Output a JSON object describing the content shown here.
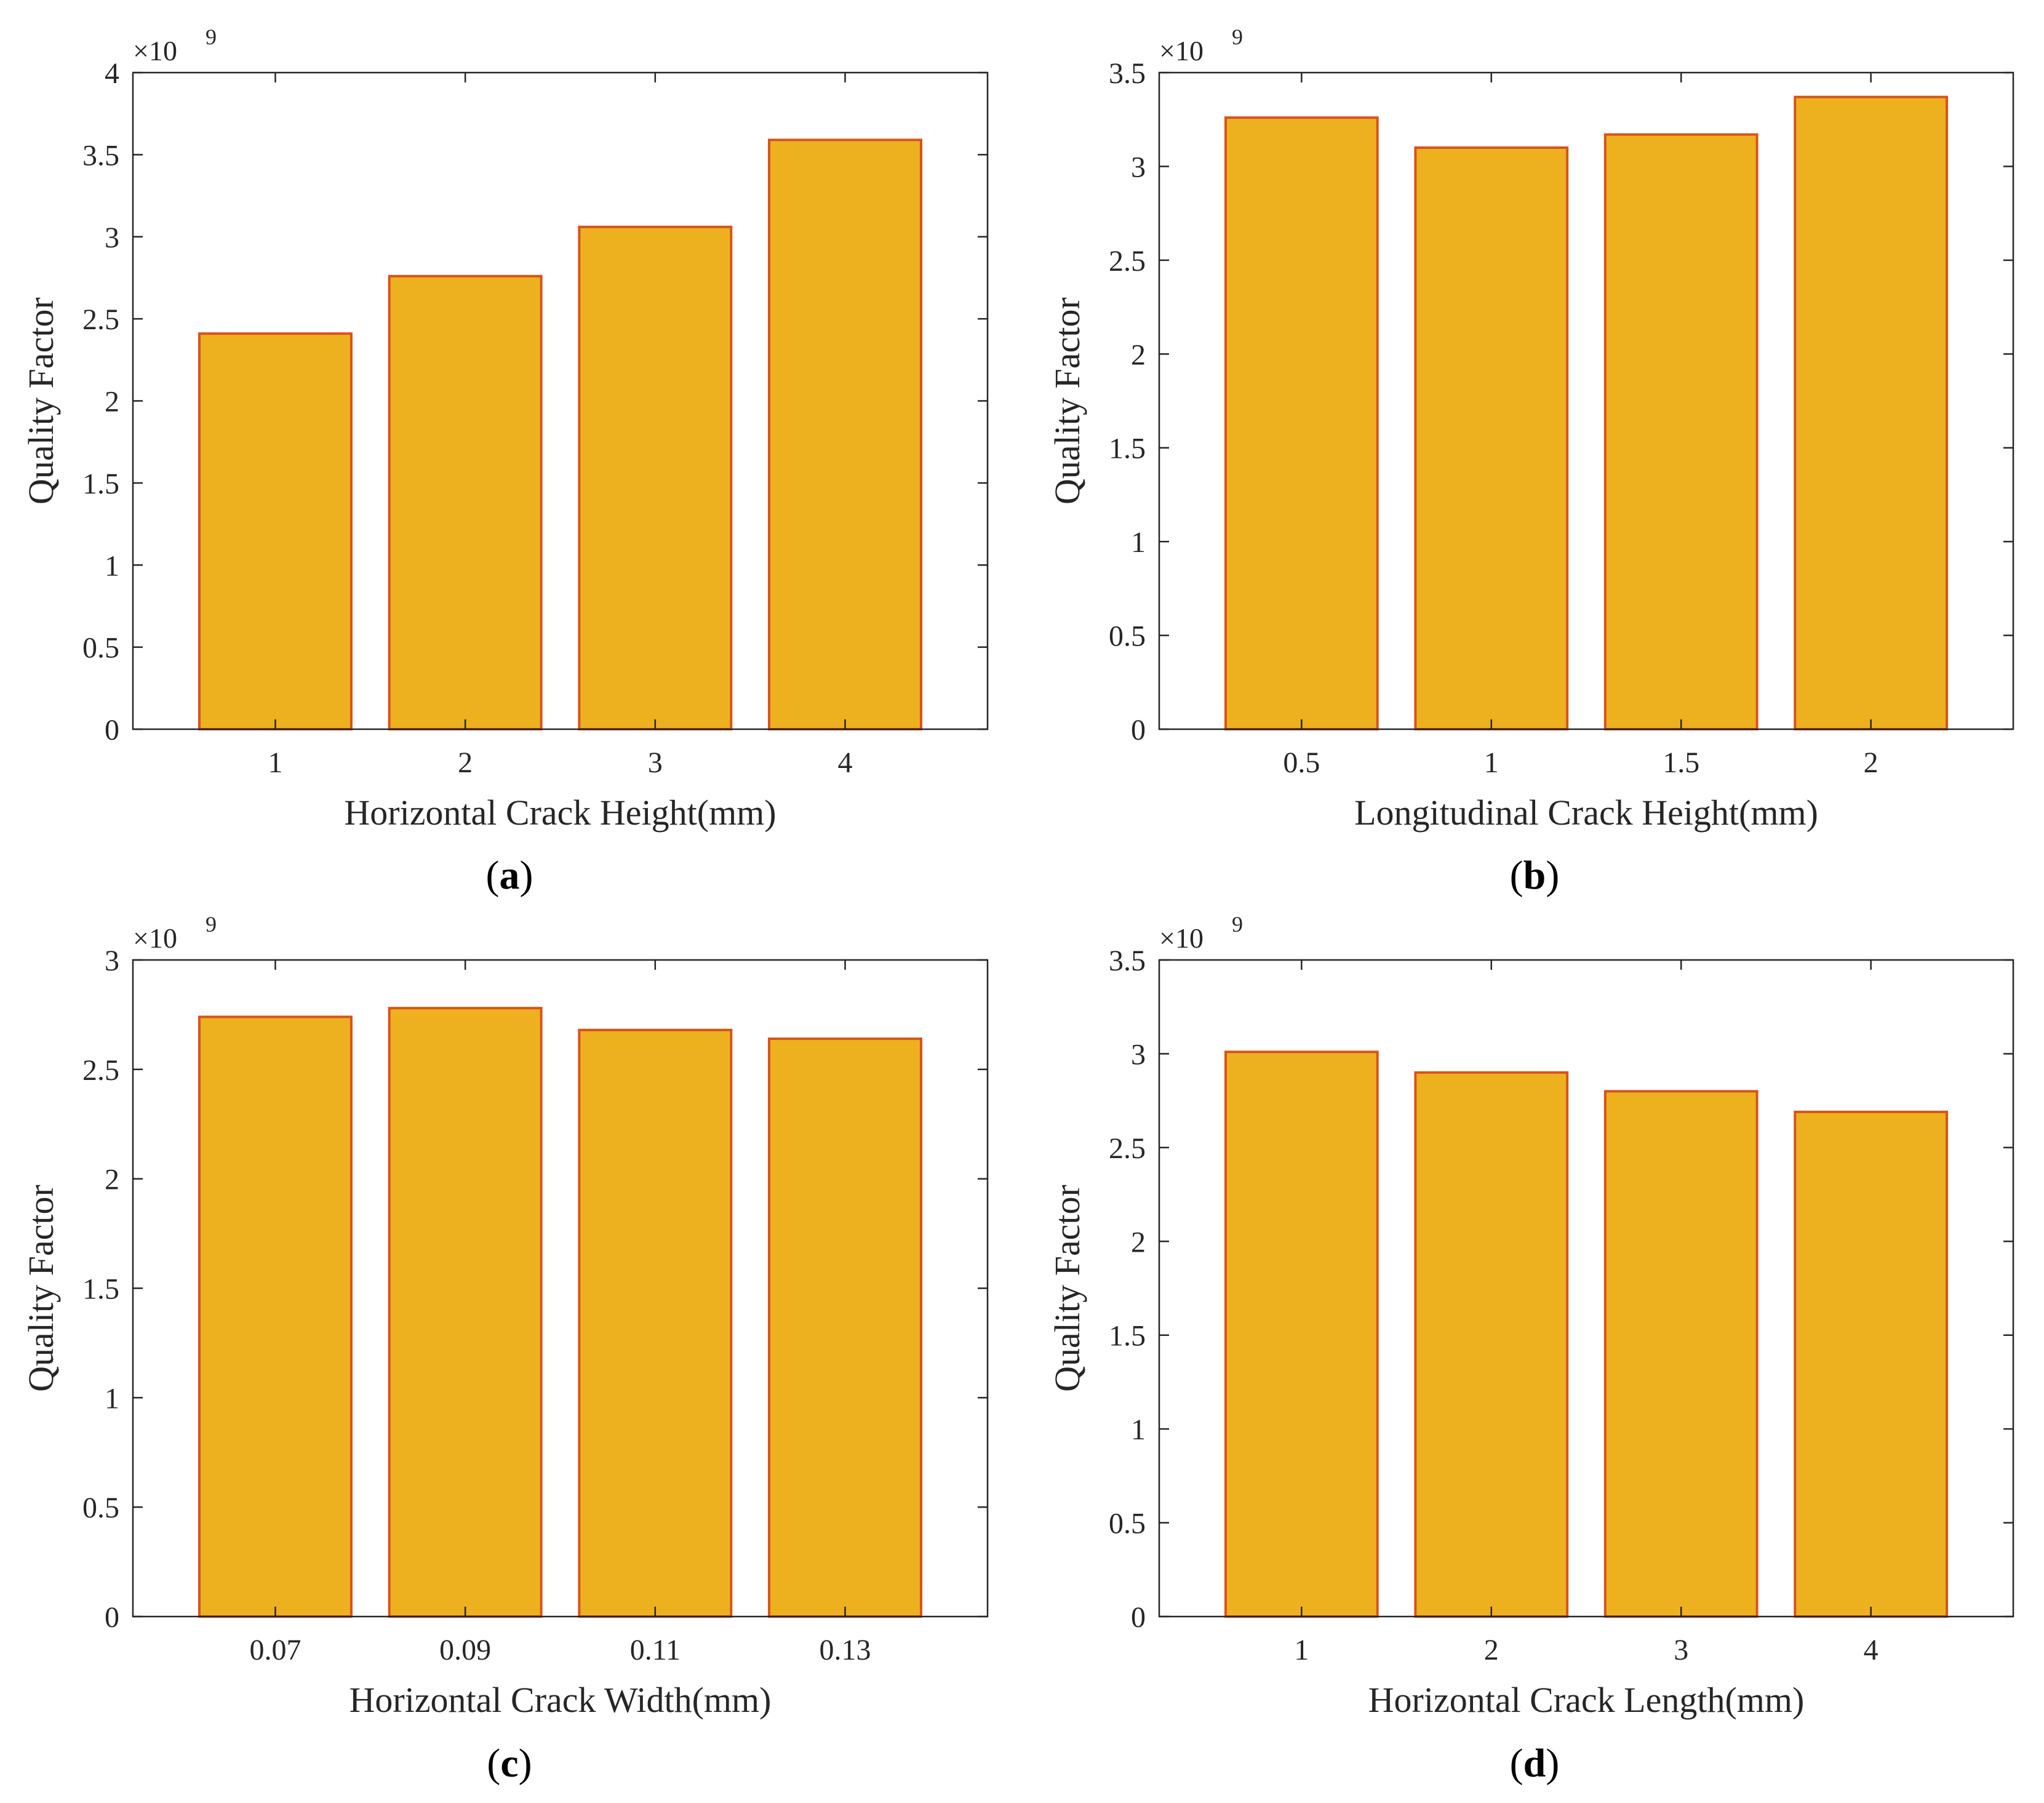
{
  "colors": {
    "bar_fill": "#EDB120",
    "bar_edge": "#D95319",
    "axis": "#262626"
  },
  "chart_data": [
    {
      "type": "bar",
      "panel": "(a)",
      "panel_letter": "a",
      "categories": [
        "1",
        "2",
        "3",
        "4"
      ],
      "values": [
        2.41,
        2.76,
        3.06,
        3.59
      ],
      "exponent_label": "×10",
      "exponent": "9",
      "xlabel": "Horizontal Crack Height(mm)",
      "ylabel": "Quality Factor",
      "ylim": [
        0,
        4
      ],
      "yticks": [
        0,
        0.5,
        1,
        1.5,
        2,
        2.5,
        3,
        3.5,
        4
      ],
      "yticklabels": [
        "0",
        "0.5",
        "1",
        "1.5",
        "2",
        "2.5",
        "3",
        "3.5",
        "4"
      ],
      "grid": false
    },
    {
      "type": "bar",
      "panel": "(b)",
      "panel_letter": "b",
      "categories": [
        "0.5",
        "1",
        "1.5",
        "2"
      ],
      "values": [
        3.26,
        3.1,
        3.17,
        3.37
      ],
      "exponent_label": "×10",
      "exponent": "9",
      "xlabel": "Longitudinal Crack Height(mm)",
      "ylabel": "Quality Factor",
      "ylim": [
        0,
        3.5
      ],
      "yticks": [
        0,
        0.5,
        1,
        1.5,
        2,
        2.5,
        3,
        3.5
      ],
      "yticklabels": [
        "0",
        "0.5",
        "1",
        "1.5",
        "2",
        "2.5",
        "3",
        "3.5"
      ],
      "grid": false
    },
    {
      "type": "bar",
      "panel": "(c)",
      "panel_letter": "c",
      "categories": [
        "0.07",
        "0.09",
        "0.11",
        "0.13"
      ],
      "values": [
        2.74,
        2.78,
        2.68,
        2.64
      ],
      "exponent_label": "×10",
      "exponent": "9",
      "xlabel": "Horizontal Crack Width(mm)",
      "ylabel": "Quality Factor",
      "ylim": [
        0,
        3
      ],
      "yticks": [
        0,
        0.5,
        1,
        1.5,
        2,
        2.5,
        3
      ],
      "yticklabels": [
        "0",
        "0.5",
        "1",
        "1.5",
        "2",
        "2.5",
        "3"
      ],
      "grid": false
    },
    {
      "type": "bar",
      "panel": "(d)",
      "panel_letter": "d",
      "categories": [
        "1",
        "2",
        "3",
        "4"
      ],
      "values": [
        3.01,
        2.9,
        2.8,
        2.69
      ],
      "exponent_label": "×10",
      "exponent": "9",
      "xlabel": "Horizontal Crack Length(mm)",
      "ylabel": "Quality Factor",
      "ylim": [
        0,
        3.5
      ],
      "yticks": [
        0,
        0.5,
        1,
        1.5,
        2,
        2.5,
        3,
        3.5
      ],
      "yticklabels": [
        "0",
        "0.5",
        "1",
        "1.5",
        "2",
        "2.5",
        "3",
        "3.5"
      ],
      "grid": false
    }
  ]
}
